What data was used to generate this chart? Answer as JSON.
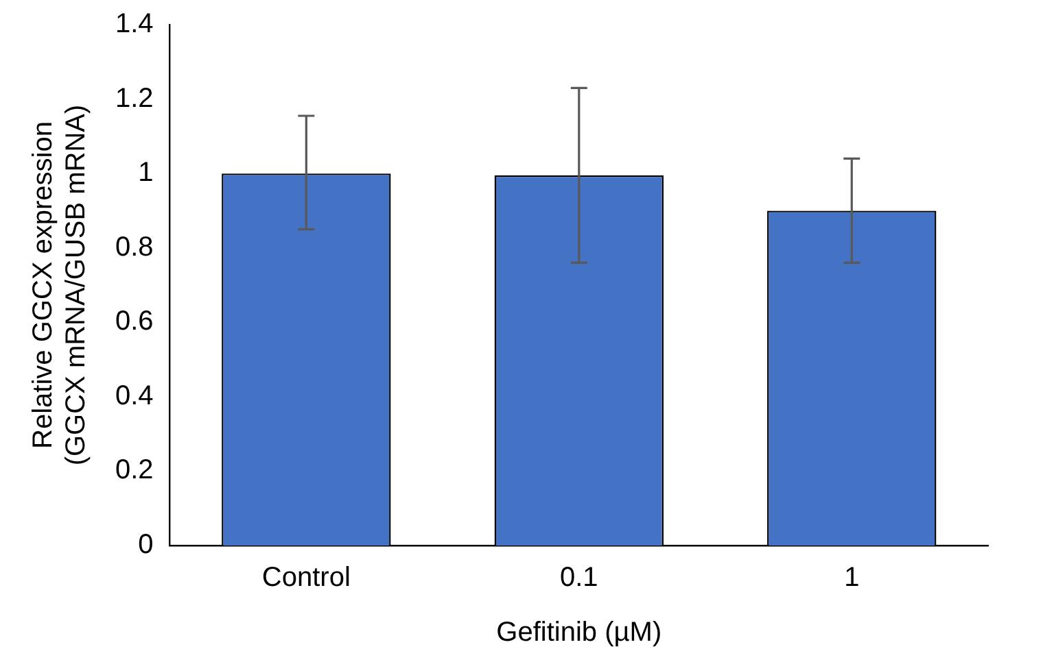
{
  "chart_data": {
    "type": "bar",
    "xlabel": "Gefitinib (µM)",
    "ylabel": "Relative GGCX expression\n(GGCX mRNA/GUSB mRNA)",
    "categories": [
      "Control",
      "0.1",
      "1"
    ],
    "values": [
      1.0,
      0.995,
      0.9
    ],
    "errors": [
      [
        0.85,
        1.155
      ],
      [
        0.76,
        1.23
      ],
      [
        0.76,
        1.04
      ]
    ],
    "color": "#4472c4",
    "ylim": [
      0,
      1.4
    ],
    "yticks": [
      0,
      0.2,
      0.4,
      0.6,
      0.8,
      1,
      1.2,
      1.4
    ],
    "grid": false,
    "legend": false
  }
}
